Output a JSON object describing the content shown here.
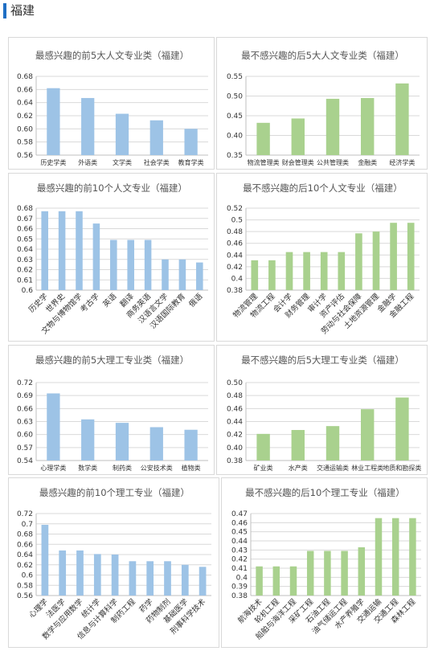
{
  "header": {
    "title": "福建"
  },
  "colors": {
    "blue": "#9dc3e6",
    "green": "#a9d18e",
    "accent": "#1f6fc4"
  },
  "chart_data": [
    {
      "type": "bar",
      "title": "最感兴趣的前5大人文专业类（福建）",
      "categories": [
        "历史学类",
        "外语类",
        "文学类",
        "社会学类",
        "教育学类"
      ],
      "values": [
        0.662,
        0.647,
        0.623,
        0.613,
        0.6
      ],
      "ylim": [
        0.56,
        0.68
      ],
      "yticks": [
        "0.56",
        "0.58",
        "0.60",
        "0.62",
        "0.64",
        "0.66",
        "0.68"
      ],
      "xlabel": "",
      "ylabel": "",
      "grid": true,
      "color": "blue"
    },
    {
      "type": "bar",
      "title": "最不感兴趣的后5大人文专业类（福建）",
      "categories": [
        "物流管理类",
        "财会管理类",
        "公共管理类",
        "金融类",
        "经济学类"
      ],
      "values": [
        0.432,
        0.443,
        0.493,
        0.495,
        0.532
      ],
      "ylim": [
        0.35,
        0.55
      ],
      "yticks": [
        "0.35",
        "0.40",
        "0.45",
        "0.50",
        "0.55"
      ],
      "xlabel": "",
      "ylabel": "",
      "grid": true,
      "color": "green"
    },
    {
      "type": "bar",
      "title": "最感兴趣的前10个人文专业（福建）",
      "categories": [
        "历史学",
        "世界史",
        "文物与博物馆学",
        "考古学",
        "英语",
        "翻译",
        "商务英语",
        "汉语言文学",
        "汉语国际教育",
        "俄语"
      ],
      "values": [
        0.677,
        0.677,
        0.677,
        0.665,
        0.649,
        0.649,
        0.649,
        0.63,
        0.63,
        0.627
      ],
      "ylim": [
        0.6,
        0.68
      ],
      "yticks": [
        "0.6",
        "0.61",
        "0.62",
        "0.63",
        "0.64",
        "0.65",
        "0.66",
        "0.67",
        "0.68"
      ],
      "xlabel": "",
      "ylabel": "",
      "grid": true,
      "color": "blue"
    },
    {
      "type": "bar",
      "title": "最不感兴趣的后10个人文专业（福建）",
      "categories": [
        "物流管理",
        "物流工程",
        "会计学",
        "财务管理",
        "审计学",
        "资产评估",
        "劳动与社会保障",
        "土地资源管理",
        "金融学",
        "金融工程"
      ],
      "values": [
        0.431,
        0.431,
        0.445,
        0.445,
        0.445,
        0.445,
        0.477,
        0.48,
        0.495,
        0.495
      ],
      "ylim": [
        0.38,
        0.52
      ],
      "yticks": [
        "0.38",
        "0.4",
        "0.42",
        "0.44",
        "0.46",
        "0.48",
        "0.5",
        "0.52"
      ],
      "xlabel": "",
      "ylabel": "",
      "grid": true,
      "color": "green"
    },
    {
      "type": "bar",
      "title": "最感兴趣的前5大理工专业类（福建）",
      "categories": [
        "心理学类",
        "数学类",
        "制药类",
        "公安技术类",
        "植物类"
      ],
      "values": [
        0.695,
        0.635,
        0.627,
        0.617,
        0.611
      ],
      "ylim": [
        0.54,
        0.72
      ],
      "yticks": [
        "0.54",
        "0.57",
        "0.60",
        "0.63",
        "0.66",
        "0.69",
        "0.72"
      ],
      "xlabel": "",
      "ylabel": "",
      "grid": true,
      "color": "blue"
    },
    {
      "type": "bar",
      "title": "最不感兴趣的后5大理工专业类（福建）",
      "categories": [
        "矿业类",
        "水产类",
        "交通运输类",
        "林业工程类",
        "地质和勘探类"
      ],
      "values": [
        0.421,
        0.427,
        0.433,
        0.459,
        0.477
      ],
      "ylim": [
        0.38,
        0.5
      ],
      "yticks": [
        "0.38",
        "0.40",
        "0.42",
        "0.44",
        "0.46",
        "0.48",
        "0.50"
      ],
      "xlabel": "",
      "ylabel": "",
      "grid": true,
      "color": "green"
    },
    {
      "type": "bar",
      "title": "最感兴趣的前10个理工专业（福建）",
      "categories": [
        "心理学",
        "法医学",
        "数学与应用数学",
        "统计学",
        "信息与计算科学",
        "制药工程",
        "药学",
        "药物制剂",
        "基础医学",
        "刑事科学技术"
      ],
      "values": [
        0.698,
        0.648,
        0.648,
        0.641,
        0.64,
        0.627,
        0.627,
        0.627,
        0.62,
        0.616
      ],
      "ylim": [
        0.56,
        0.72
      ],
      "yticks": [
        "0.56",
        "0.58",
        "0.6",
        "0.62",
        "0.64",
        "0.66",
        "0.68",
        "0.7",
        "0.72"
      ],
      "xlabel": "",
      "ylabel": "",
      "grid": true,
      "color": "blue"
    },
    {
      "type": "bar",
      "title": "最不感兴趣的后10个理工专业（福建）",
      "categories": [
        "航海技术",
        "轮机工程",
        "船舶与海洋工程",
        "采矿工程",
        "石油工程",
        "油气储运工程",
        "水产养殖学",
        "交通运输",
        "交通工程",
        "森林工程"
      ],
      "values": [
        0.412,
        0.412,
        0.412,
        0.429,
        0.429,
        0.429,
        0.433,
        0.465,
        0.465,
        0.465
      ],
      "ylim": [
        0.38,
        0.47
      ],
      "yticks": [
        "0.38",
        "0.39",
        "0.4",
        "0.41",
        "0.42",
        "0.43",
        "0.44",
        "0.45",
        "0.46",
        "0.47"
      ],
      "xlabel": "",
      "ylabel": "",
      "grid": true,
      "color": "green"
    }
  ]
}
